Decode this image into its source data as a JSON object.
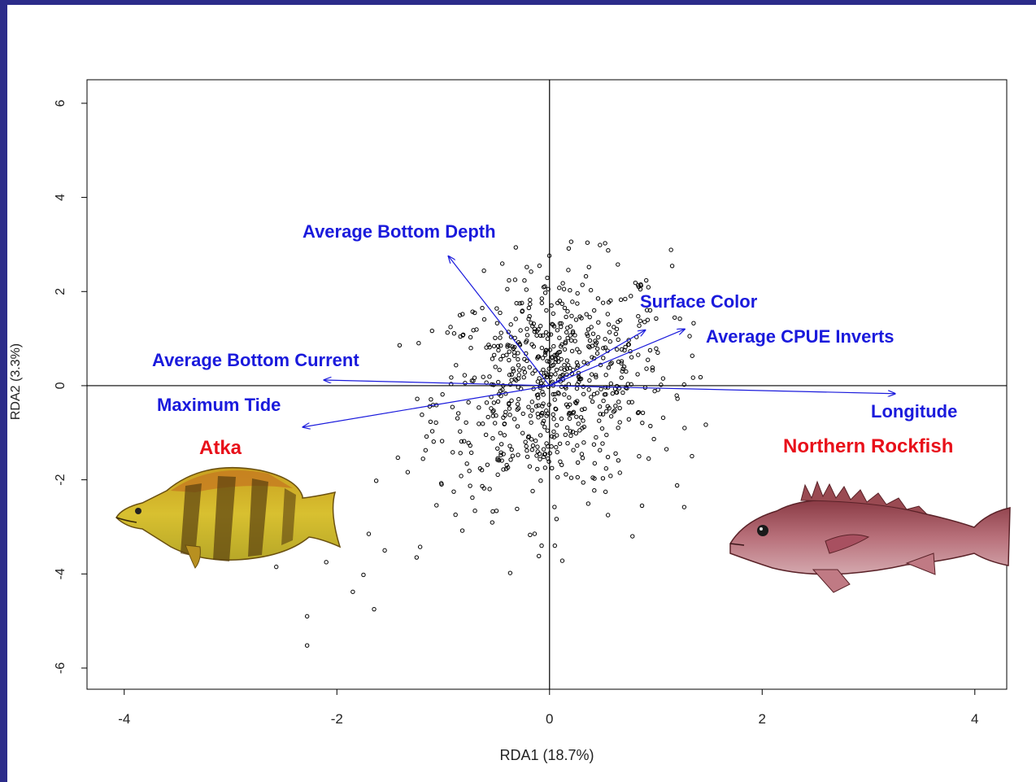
{
  "chart_data": {
    "type": "scatter",
    "xlabel": "RDA1 (18.7%)",
    "ylabel": "RDA2 (3.3%)",
    "xlim": [
      -4.35,
      4.3
    ],
    "ylim": [
      -6.45,
      6.5
    ],
    "xticks": [
      -4,
      -2,
      0,
      2,
      4
    ],
    "yticks": [
      -6,
      -4,
      -2,
      0,
      2,
      4,
      6
    ],
    "xtick_labels": [
      "-4",
      "-2",
      "0",
      "2",
      "4"
    ],
    "ytick_labels": [
      "-6",
      "-4",
      "-2",
      "0",
      "2",
      "4",
      "6"
    ],
    "reference_lines": {
      "x": 0,
      "y": 0
    },
    "point_color": "#000000",
    "arrow_color": "#1a1adc",
    "species_color": "#e8101a",
    "arrows": [
      {
        "label": "Average Bottom Depth",
        "x": -0.95,
        "y": 2.75
      },
      {
        "label": "Surface Color",
        "x": 0.9,
        "y": 1.18
      },
      {
        "label": "Average CPUE Inverts",
        "x": 1.27,
        "y": 1.2
      },
      {
        "label": "Average Bottom Current",
        "x": -2.12,
        "y": 0.12
      },
      {
        "label": "Longitude",
        "x": 3.25,
        "y": -0.17
      },
      {
        "label": "Maximum Tide",
        "x": -2.32,
        "y": -0.88
      }
    ],
    "species": [
      {
        "label": "Atka",
        "icon": "atka-mackerel-fish-icon"
      },
      {
        "label": "Northern Rockfish",
        "icon": "northern-rockfish-icon"
      }
    ],
    "outlier_points": [
      {
        "x": -2.28,
        "y": -5.52
      },
      {
        "x": -2.28,
        "y": -4.9
      },
      {
        "x": -1.65,
        "y": -4.75
      },
      {
        "x": -1.85,
        "y": -4.38
      },
      {
        "x": -1.75,
        "y": -4.02
      },
      {
        "x": -2.1,
        "y": -3.75
      },
      {
        "x": -2.57,
        "y": -3.85
      },
      {
        "x": -1.7,
        "y": -3.15
      },
      {
        "x": -1.63,
        "y": -2.02
      },
      {
        "x": -0.1,
        "y": -3.62
      },
      {
        "x": 0.12,
        "y": -3.72
      },
      {
        "x": -0.37,
        "y": -3.98
      },
      {
        "x": -0.82,
        "y": -3.08
      },
      {
        "x": 0.05,
        "y": -3.4
      },
      {
        "x": 1.2,
        "y": -2.12
      },
      {
        "x": 1.47,
        "y": -0.83
      },
      {
        "x": 1.42,
        "y": 0.18
      },
      {
        "x": 1.35,
        "y": 0.17
      },
      {
        "x": 1.27,
        "y": -0.9
      },
      {
        "x": 1.1,
        "y": -1.35
      },
      {
        "x": 0.87,
        "y": -2.55
      },
      {
        "x": 0.78,
        "y": -3.2
      },
      {
        "x": 0.55,
        "y": -2.75
      },
      {
        "x": -1.55,
        "y": -3.5
      },
      {
        "x": -1.25,
        "y": -3.65
      }
    ]
  }
}
